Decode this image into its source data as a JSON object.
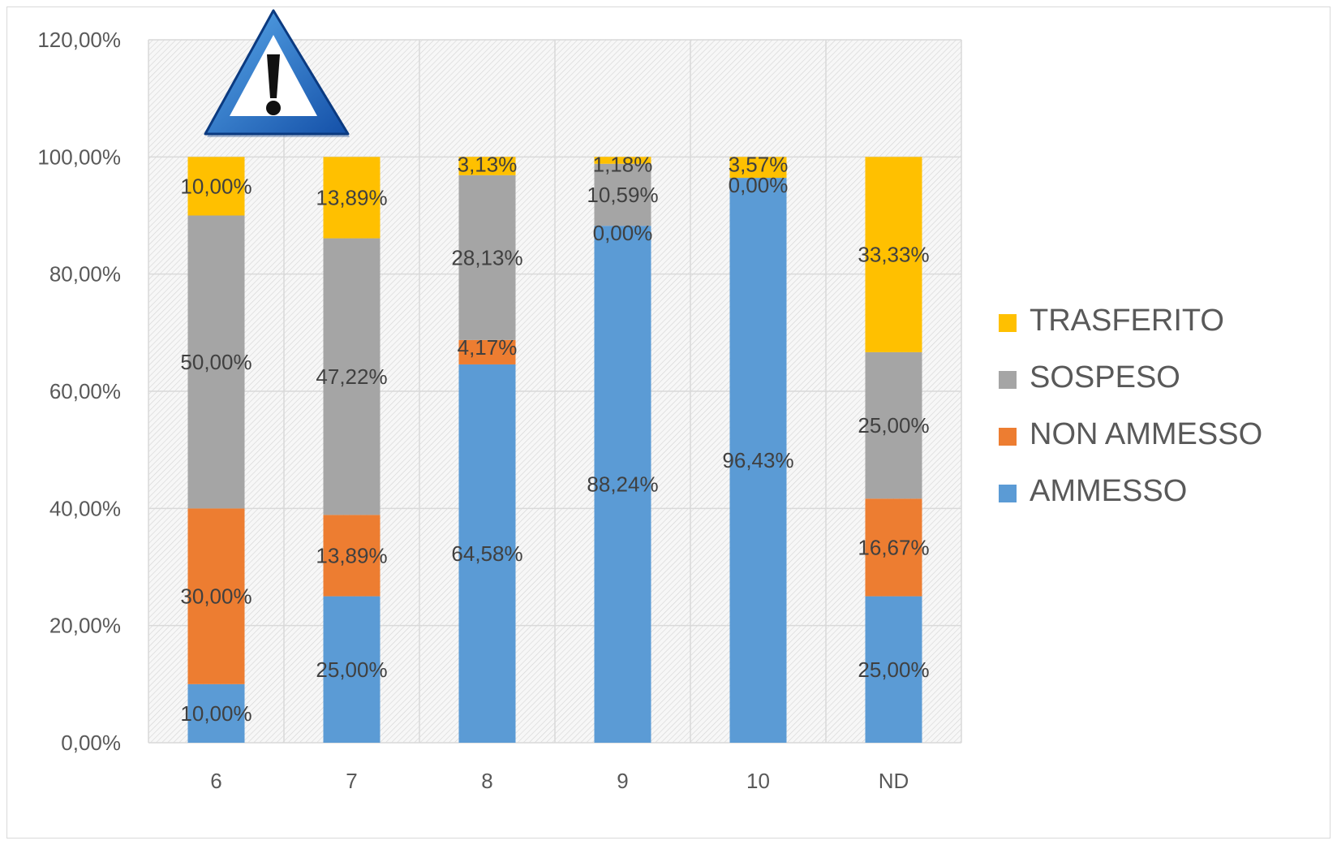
{
  "chart_data": {
    "type": "bar",
    "stacked": true,
    "categories": [
      "6",
      "7",
      "8",
      "9",
      "10",
      "ND"
    ],
    "series": [
      {
        "name": "AMMESSO",
        "color": "#5b9bd5",
        "values": [
          10.0,
          25.0,
          64.58,
          88.24,
          96.43,
          25.0
        ],
        "labels": [
          "10,00%",
          "25,00%",
          "64,58%",
          "88,24%",
          "96,43%",
          "25,00%"
        ]
      },
      {
        "name": "NON AMMESSO",
        "color": "#ed7d31",
        "values": [
          30.0,
          13.89,
          4.17,
          0.0,
          0.0,
          16.67
        ],
        "labels": [
          "30,00%",
          "13,89%",
          "4,17%",
          "0,00%",
          "0,00%",
          "16,67%"
        ]
      },
      {
        "name": "SOSPESO",
        "color": "#a5a5a5",
        "values": [
          50.0,
          47.22,
          28.13,
          10.59,
          0.0,
          25.0
        ],
        "labels": [
          "50,00%",
          "47,22%",
          "28,13%",
          "10,59%",
          "",
          "25,00%"
        ]
      },
      {
        "name": "TRASFERITO",
        "color": "#ffc000",
        "values": [
          10.0,
          13.89,
          3.13,
          1.18,
          3.57,
          33.33
        ],
        "labels": [
          "10,00%",
          "13,89%",
          "3,13%",
          "1,18%",
          "3,57%",
          "33,33%"
        ]
      }
    ],
    "ylim": [
      0,
      120
    ],
    "yticks": [
      "0,00%",
      "20,00%",
      "40,00%",
      "60,00%",
      "80,00%",
      "100,00%",
      "120,00%"
    ],
    "grid": true,
    "legend": "right",
    "title": "",
    "xlabel": "",
    "ylabel": ""
  },
  "decoration": {
    "icon": "warning-triangle-icon"
  }
}
